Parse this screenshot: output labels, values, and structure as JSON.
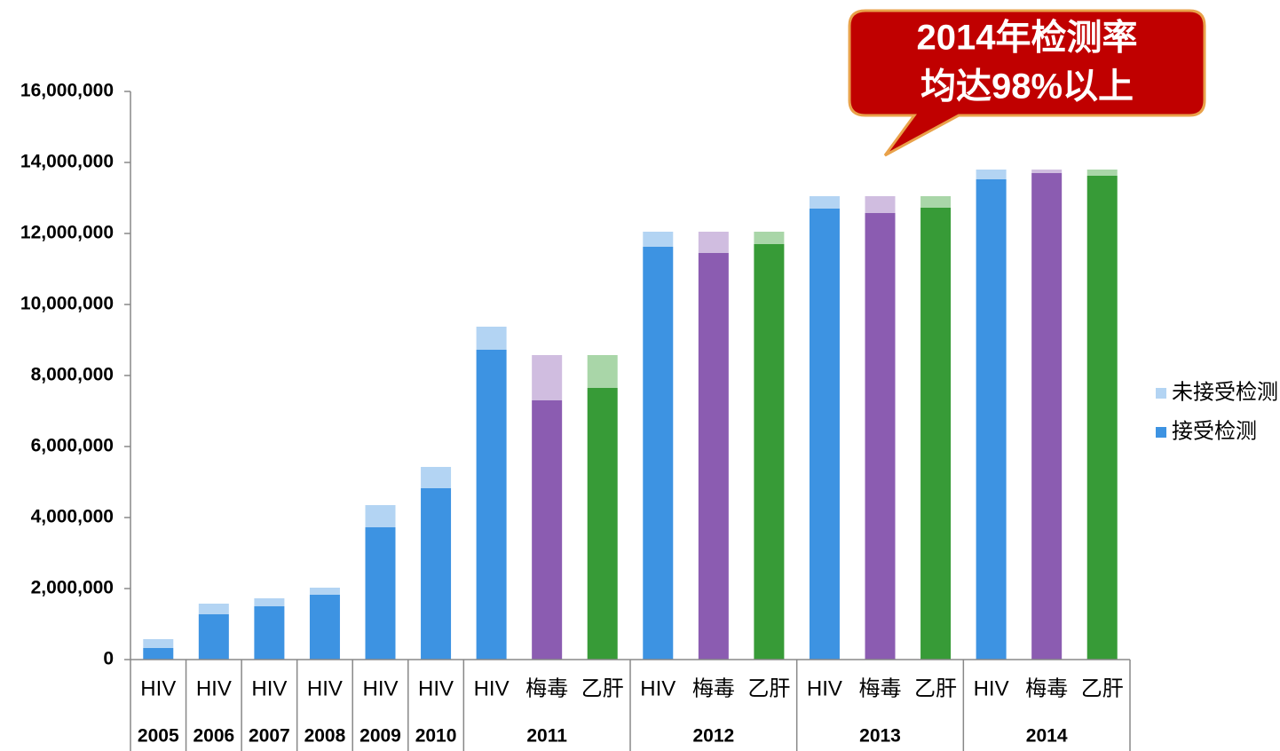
{
  "chart_data": {
    "type": "stacked_bar",
    "annotation": [
      "2014年检测率",
      "均达98%以上"
    ],
    "groups": [
      {
        "label": "2005",
        "categories": [
          "HIV"
        ]
      },
      {
        "label": "2006",
        "categories": [
          "HIV"
        ]
      },
      {
        "label": "2007",
        "categories": [
          "HIV"
        ]
      },
      {
        "label": "2008",
        "categories": [
          "HIV"
        ]
      },
      {
        "label": "2009",
        "categories": [
          "HIV"
        ]
      },
      {
        "label": "2010",
        "categories": [
          "HIV"
        ]
      },
      {
        "label": "2011",
        "categories": [
          "HIV",
          "梅毒",
          "乙肝"
        ]
      },
      {
        "label": "2012",
        "categories": [
          "HIV",
          "梅毒",
          "乙肝"
        ]
      },
      {
        "label": "2013",
        "categories": [
          "HIV",
          "梅毒",
          "乙肝"
        ]
      },
      {
        "label": "2014",
        "categories": [
          "HIV",
          "梅毒",
          "乙肝"
        ]
      }
    ],
    "series": [
      {
        "name": "未接受检测",
        "color": "#b3d4f3",
        "colors": [
          "#b3d4f3",
          "#b3d4f3",
          "#b3d4f3",
          "#b3d4f3",
          "#b3d4f3",
          "#b3d4f3",
          "#b3d4f3",
          "#d0bde0",
          "#a9d6a8",
          "#b3d4f3",
          "#d0bde0",
          "#a9d6a8",
          "#b3d4f3",
          "#d0bde0",
          "#a9d6a8",
          "#b3d4f3",
          "#d0bde0",
          "#a9d6a8"
        ],
        "values": [
          250000,
          300000,
          225000,
          200000,
          625000,
          600000,
          650000,
          1275000,
          925000,
          425000,
          600000,
          350000,
          350000,
          475000,
          325000,
          275000,
          100000,
          175000
        ]
      },
      {
        "name": "接受检测",
        "color": "#3d93e2",
        "colors": [
          "#3d93e2",
          "#3d93e2",
          "#3d93e2",
          "#3d93e2",
          "#3d93e2",
          "#3d93e2",
          "#3d93e2",
          "#8b5cb1",
          "#379b37",
          "#3d93e2",
          "#8b5cb1",
          "#379b37",
          "#3d93e2",
          "#8b5cb1",
          "#379b37",
          "#3d93e2",
          "#8b5cb1",
          "#379b37"
        ],
        "values": [
          325000,
          1275000,
          1500000,
          1825000,
          3725000,
          4825000,
          8725000,
          7300000,
          7650000,
          11625000,
          11450000,
          11700000,
          12700000,
          12575000,
          12725000,
          13525000,
          13700000,
          13625000
        ]
      }
    ],
    "ylim": [
      0,
      16000000
    ],
    "yticks": [
      0,
      {
        "value": 2000000,
        "label": "2,000,000"
      },
      {
        "value": 4000000,
        "label": "4,000,000"
      },
      {
        "value": 6000000,
        "label": "6,000,000"
      },
      {
        "value": 8000000,
        "label": "8,000,000"
      },
      {
        "value": 10000000,
        "label": "10,000,000"
      },
      {
        "value": 12000000,
        "label": "12,000,000"
      },
      {
        "value": 14000000,
        "label": "14,000,000"
      },
      {
        "value": 16000000,
        "label": "16,000,000"
      }
    ],
    "legend": "right"
  }
}
